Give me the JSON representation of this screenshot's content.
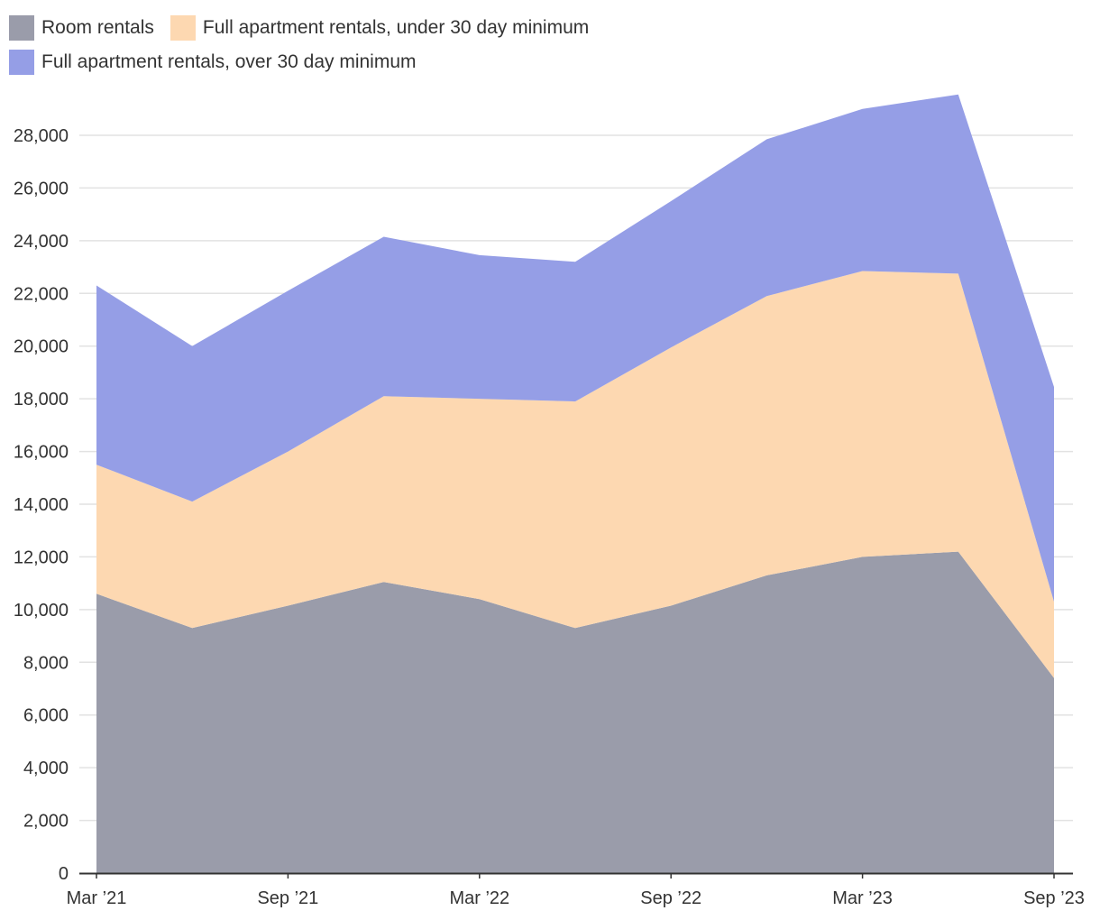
{
  "chart_data": {
    "type": "area",
    "stacked": true,
    "title": "",
    "xlabel": "",
    "ylabel": "",
    "ylim": [
      0,
      29600
    ],
    "y_ticks": [
      0,
      2000,
      4000,
      6000,
      8000,
      10000,
      12000,
      14000,
      16000,
      18000,
      20000,
      22000,
      24000,
      26000,
      28000
    ],
    "y_tick_labels": [
      "0",
      "2,000",
      "4,000",
      "6,000",
      "8,000",
      "10,000",
      "12,000",
      "14,000",
      "16,000",
      "18,000",
      "20,000",
      "22,000",
      "24,000",
      "26,000",
      "28,000"
    ],
    "x": [
      "2021-03",
      "2021-06",
      "2021-09",
      "2021-12",
      "2022-03",
      "2022-06",
      "2022-09",
      "2022-12",
      "2023-03",
      "2023-06",
      "2023-09"
    ],
    "x_ticks": [
      "Mar ’21",
      "Sep ’21",
      "Mar ’22",
      "Sep ’22",
      "Mar ’23",
      "Sep ’23"
    ],
    "x_tick_index": [
      0,
      2,
      4,
      6,
      8,
      10
    ],
    "grid": true,
    "legend_position": "top-left",
    "series": [
      {
        "name": "Room rentals",
        "color": "#9a9caa",
        "values": [
          10600,
          9300,
          10150,
          11050,
          10400,
          9300,
          10150,
          11300,
          12000,
          12200,
          7400
        ]
      },
      {
        "name": "Full apartment rentals, under 30 day minimum",
        "color": "#fdd8b1",
        "values": [
          4900,
          4800,
          5850,
          7050,
          7600,
          8600,
          9800,
          10600,
          10850,
          10550,
          2900
        ]
      },
      {
        "name": "Full apartment rentals, over 30 day minimum",
        "color": "#959ee6",
        "values": [
          6800,
          5900,
          6100,
          6050,
          5450,
          5300,
          5550,
          5950,
          6150,
          6800,
          8150
        ]
      }
    ]
  }
}
